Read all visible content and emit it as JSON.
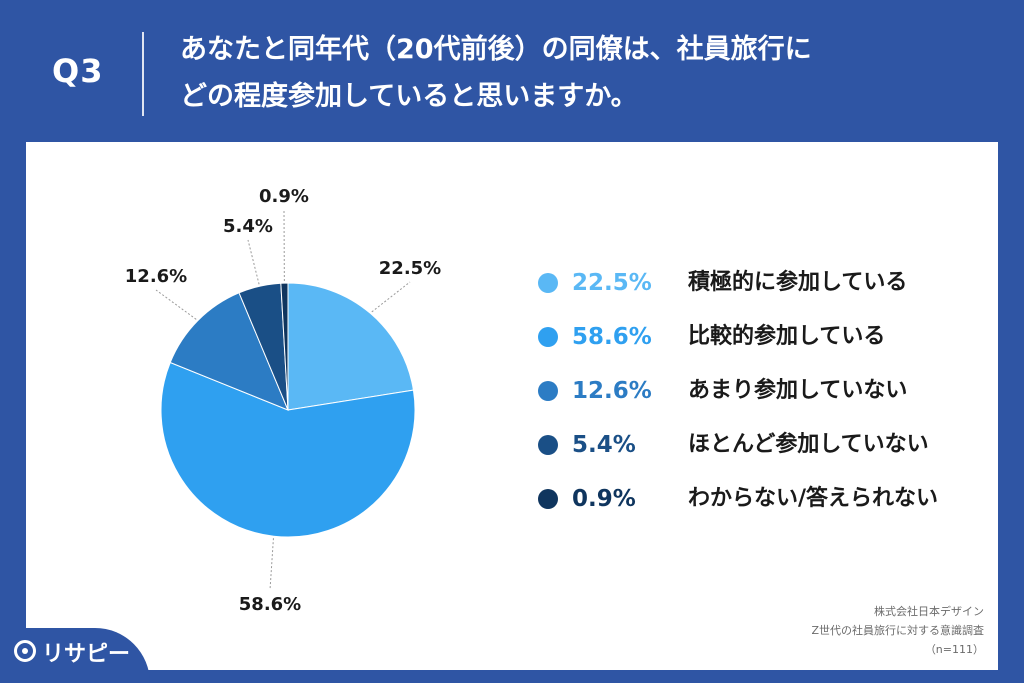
{
  "header": {
    "question": "Q3",
    "title_line1": "あなたと同年代（20代前後）の同僚は、社員旅行に",
    "title_line2": "どの程度参加していると思いますか。"
  },
  "chart_data": {
    "type": "pie",
    "title": "",
    "slices": [
      {
        "label": "積極的に参加している",
        "value": 22.5,
        "display": "22.5%",
        "color": "#5ab8f5"
      },
      {
        "label": "比較的参加している",
        "value": 58.6,
        "display": "58.6%",
        "color": "#2fa0f0"
      },
      {
        "label": "あまり参加していない",
        "value": 12.6,
        "display": "12.6%",
        "color": "#2c7cc4"
      },
      {
        "label": "ほとんど参加していない",
        "value": 5.4,
        "display": "5.4%",
        "color": "#1a4f86"
      },
      {
        "label": "わからない/答えられない",
        "value": 0.9,
        "display": "0.9%",
        "color": "#0f355e"
      }
    ],
    "legend_position": "right"
  },
  "source": {
    "company": "株式会社日本デザイン",
    "survey": "Z世代の社員旅行に対する意識調査",
    "sample": "（n=111）"
  },
  "brand": {
    "name": "リサピー"
  }
}
